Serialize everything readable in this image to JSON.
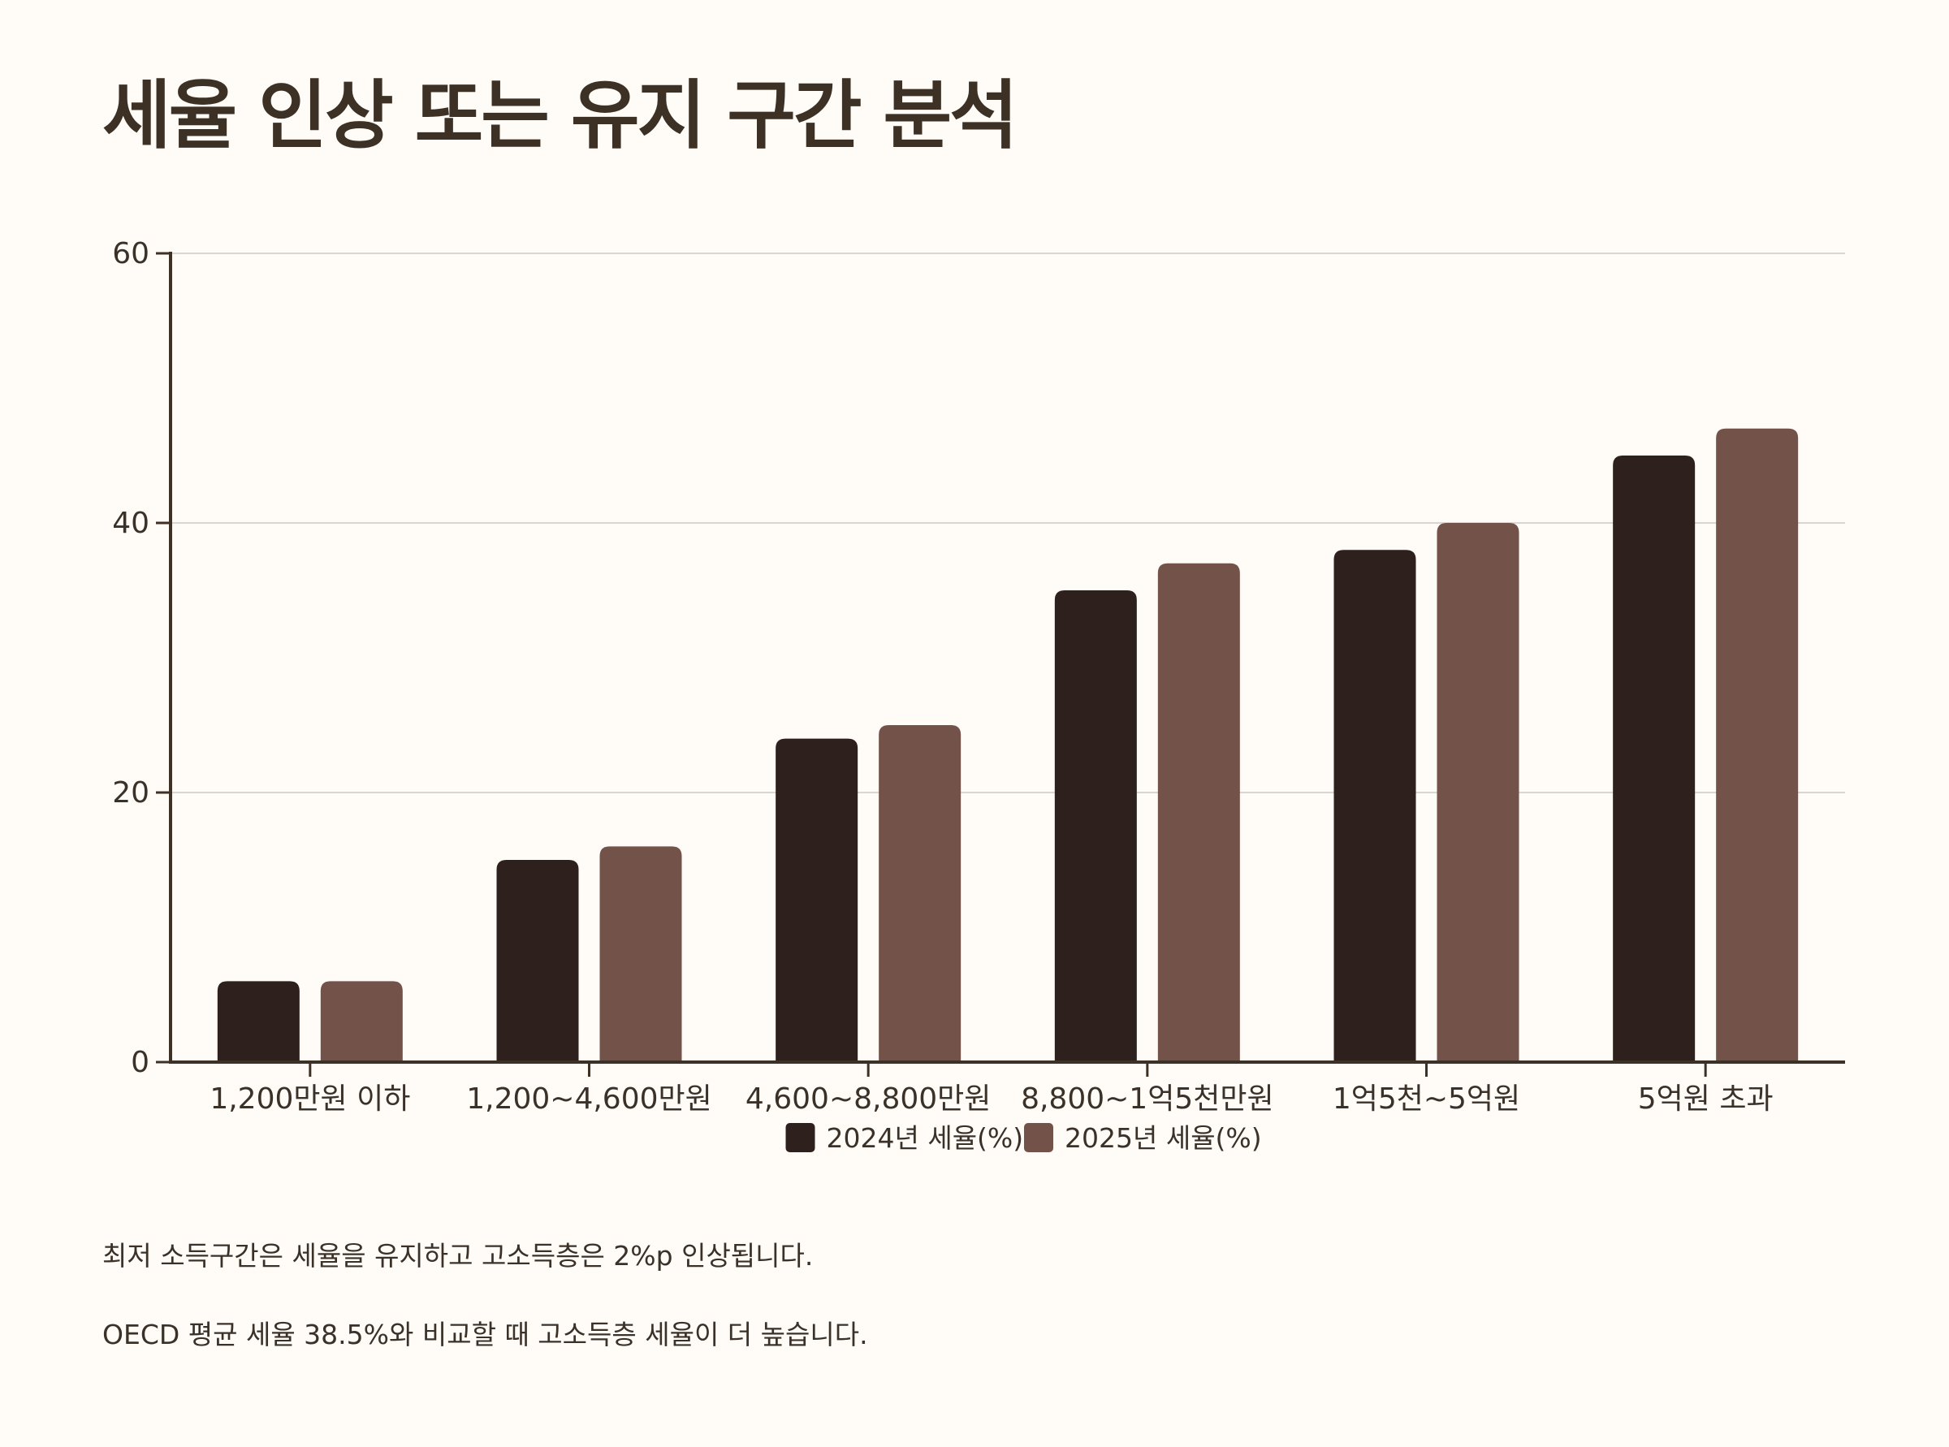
{
  "page": {
    "title": "세율 인상 또는 유지 구간 분석",
    "notes": [
      "최저 소득구간은 세율을 유지하고 고소득층은 2%p 인상됩니다.",
      "OECD 평균 세율 38.5%와 비교할 때 고소득층 세율이 더 높습니다."
    ]
  },
  "chart_data": {
    "type": "bar",
    "categories": [
      "1,200만원 이하",
      "1,200~4,600만원",
      "4,600~8,800만원",
      "8,800~1억5천만원",
      "1억5천~5억원",
      "5억원 초과"
    ],
    "series": [
      {
        "name": "2024년 세율(%)",
        "values": [
          6,
          15,
          24,
          35,
          38,
          45
        ],
        "color": "#2e201c"
      },
      {
        "name": "2025년 세율(%)",
        "values": [
          6,
          16,
          25,
          37,
          40,
          47
        ],
        "color": "#73524a"
      }
    ],
    "yticks": [
      0,
      20,
      40,
      60
    ],
    "ylim": [
      0,
      60
    ],
    "grid": true,
    "legend_position": "bottom"
  }
}
